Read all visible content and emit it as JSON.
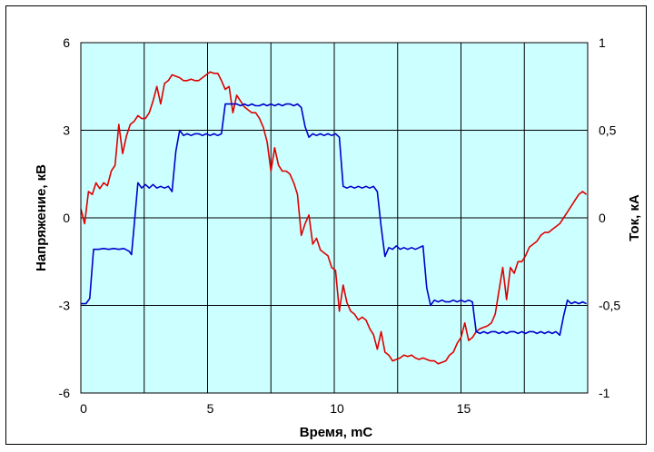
{
  "chart_data": {
    "type": "line",
    "title": "",
    "xlabel": "Время, mС",
    "ylabel": "Напряжение, кВ",
    "y2label": "Ток, кА",
    "xlim": [
      0,
      20
    ],
    "ylim": [
      -6,
      6
    ],
    "y2lim": [
      -1,
      1
    ],
    "x_ticks": [
      "0",
      "5",
      "10",
      "15"
    ],
    "x_tick_values": [
      0,
      5,
      10,
      15
    ],
    "y_ticks": [
      "6",
      "3",
      "0",
      "-3",
      "-6"
    ],
    "y_tick_values": [
      6,
      3,
      0,
      -3,
      -6
    ],
    "y2_ticks": [
      "1",
      "0,5",
      "0",
      "-0,5",
      "-1"
    ],
    "y2_tick_values": [
      1,
      0.5,
      0,
      -0.5,
      -1
    ],
    "vertical_grid_x": [
      2.5,
      5,
      7.5,
      10,
      12.5,
      15,
      17.5
    ],
    "horizontal_grid_y": [
      3,
      0,
      -3
    ],
    "grid": true,
    "legend": "none",
    "colors": {
      "plot_bg": "#ccffff",
      "voltage": "#e00000",
      "current": "#0000cc",
      "grid": "#000000"
    },
    "series": [
      {
        "key": "voltage",
        "axis": "left",
        "x": [
          0,
          0.15,
          0.3,
          0.45,
          0.6,
          0.75,
          0.9,
          1.05,
          1.2,
          1.35,
          1.5,
          1.65,
          1.8,
          1.95,
          2.1,
          2.25,
          2.4,
          2.55,
          2.7,
          2.85,
          3.0,
          3.15,
          3.3,
          3.45,
          3.6,
          3.75,
          3.9,
          4.05,
          4.2,
          4.35,
          4.5,
          4.65,
          4.8,
          4.95,
          5.1,
          5.25,
          5.4,
          5.55,
          5.7,
          5.85,
          6.0,
          6.15,
          6.3,
          6.45,
          6.6,
          6.75,
          6.9,
          7.05,
          7.2,
          7.35,
          7.5,
          7.65,
          7.8,
          7.95,
          8.1,
          8.25,
          8.4,
          8.55,
          8.7,
          8.85,
          9.0,
          9.15,
          9.3,
          9.45,
          9.6,
          9.75,
          9.9,
          10.05,
          10.2,
          10.35,
          10.5,
          10.65,
          10.8,
          10.95,
          11.1,
          11.25,
          11.4,
          11.55,
          11.7,
          11.85,
          12.0,
          12.15,
          12.3,
          12.45,
          12.6,
          12.75,
          12.9,
          13.05,
          13.2,
          13.35,
          13.5,
          13.65,
          13.8,
          13.95,
          14.1,
          14.25,
          14.4,
          14.55,
          14.7,
          14.85,
          15.0,
          15.15,
          15.3,
          15.45,
          15.6,
          15.75,
          15.9,
          16.05,
          16.2,
          16.35,
          16.5,
          16.65,
          16.8,
          16.95,
          17.1,
          17.25,
          17.4,
          17.55,
          17.7,
          17.85,
          18.0,
          18.15,
          18.3,
          18.45,
          18.6,
          18.75,
          18.9,
          19.05,
          19.2,
          19.35,
          19.5,
          19.65,
          19.8,
          19.95
        ],
        "values": [
          0.3,
          -0.2,
          0.9,
          0.8,
          1.2,
          1.0,
          1.2,
          1.1,
          1.6,
          1.8,
          3.2,
          2.2,
          2.8,
          3.2,
          3.3,
          3.5,
          3.4,
          3.4,
          3.6,
          4.0,
          4.5,
          3.9,
          4.6,
          4.7,
          4.9,
          4.85,
          4.8,
          4.7,
          4.7,
          4.75,
          4.7,
          4.7,
          4.8,
          4.9,
          5.0,
          4.95,
          4.95,
          4.7,
          4.4,
          4.5,
          3.6,
          4.2,
          4.0,
          3.8,
          3.7,
          3.6,
          3.6,
          3.4,
          3.1,
          2.6,
          1.6,
          2.4,
          1.8,
          1.6,
          1.6,
          1.5,
          1.2,
          0.8,
          -0.6,
          -0.2,
          0.1,
          -0.9,
          -0.7,
          -1.1,
          -1.2,
          -1.3,
          -1.7,
          -1.8,
          -3.2,
          -2.3,
          -2.9,
          -3.2,
          -3.3,
          -3.5,
          -3.4,
          -3.5,
          -3.8,
          -4.0,
          -4.5,
          -3.9,
          -4.6,
          -4.7,
          -4.9,
          -4.85,
          -4.8,
          -4.7,
          -4.75,
          -4.7,
          -4.8,
          -4.85,
          -4.8,
          -4.85,
          -4.9,
          -4.9,
          -5.0,
          -4.95,
          -4.9,
          -4.7,
          -4.6,
          -4.3,
          -4.1,
          -3.6,
          -4.2,
          -4.1,
          -3.9,
          -3.8,
          -3.75,
          -3.7,
          -3.6,
          -3.3,
          -2.5,
          -1.7,
          -2.8,
          -1.7,
          -1.9,
          -1.5,
          -1.5,
          -1.3,
          -1.0,
          -0.9,
          -0.8,
          -0.6,
          -0.5,
          -0.5,
          -0.4,
          -0.3,
          -0.2,
          0.0,
          0.2,
          0.4,
          0.6,
          0.8,
          0.9,
          0.8
        ],
        "note_values_unit": "кВ"
      },
      {
        "key": "current",
        "axis": "right",
        "x": [
          0,
          0.2,
          0.35,
          0.5,
          0.7,
          0.9,
          1.1,
          1.3,
          1.5,
          1.7,
          1.9,
          2.0,
          2.1,
          2.25,
          2.4,
          2.55,
          2.7,
          2.85,
          3.0,
          3.15,
          3.3,
          3.45,
          3.6,
          3.75,
          3.9,
          4.05,
          4.2,
          4.35,
          4.5,
          4.65,
          4.8,
          4.95,
          5.1,
          5.25,
          5.4,
          5.55,
          5.7,
          5.85,
          6.0,
          6.15,
          6.3,
          6.45,
          6.6,
          6.75,
          6.9,
          7.05,
          7.2,
          7.35,
          7.5,
          7.65,
          7.8,
          7.95,
          8.1,
          8.25,
          8.4,
          8.55,
          8.7,
          8.85,
          9.0,
          9.15,
          9.3,
          9.45,
          9.6,
          9.75,
          9.9,
          10.05,
          10.2,
          10.35,
          10.5,
          10.65,
          10.8,
          10.95,
          11.1,
          11.25,
          11.4,
          11.55,
          11.7,
          11.85,
          12.0,
          12.15,
          12.3,
          12.45,
          12.6,
          12.75,
          12.9,
          13.05,
          13.2,
          13.35,
          13.5,
          13.65,
          13.8,
          13.95,
          14.1,
          14.25,
          14.4,
          14.55,
          14.7,
          14.85,
          15.0,
          15.15,
          15.3,
          15.45,
          15.6,
          15.75,
          15.9,
          16.05,
          16.2,
          16.35,
          16.5,
          16.65,
          16.8,
          16.95,
          17.1,
          17.25,
          17.4,
          17.55,
          17.7,
          17.85,
          18.0,
          18.15,
          18.3,
          18.45,
          18.6,
          18.75,
          18.9,
          19.05,
          19.2,
          19.35,
          19.5,
          19.65,
          19.8,
          19.95
        ],
        "values": [
          -0.49,
          -0.49,
          -0.46,
          -0.18,
          -0.18,
          -0.175,
          -0.18,
          -0.175,
          -0.18,
          -0.175,
          -0.19,
          -0.21,
          -0.05,
          0.2,
          0.17,
          0.19,
          0.17,
          0.19,
          0.17,
          0.18,
          0.17,
          0.18,
          0.15,
          0.38,
          0.5,
          0.47,
          0.48,
          0.47,
          0.48,
          0.48,
          0.47,
          0.48,
          0.47,
          0.48,
          0.47,
          0.48,
          0.65,
          0.65,
          0.65,
          0.65,
          0.64,
          0.65,
          0.64,
          0.65,
          0.64,
          0.64,
          0.65,
          0.64,
          0.65,
          0.64,
          0.65,
          0.64,
          0.65,
          0.65,
          0.64,
          0.65,
          0.63,
          0.52,
          0.46,
          0.48,
          0.47,
          0.48,
          0.47,
          0.48,
          0.47,
          0.48,
          0.46,
          0.18,
          0.17,
          0.18,
          0.17,
          0.18,
          0.17,
          0.18,
          0.17,
          0.18,
          0.15,
          -0.05,
          -0.22,
          -0.17,
          -0.18,
          -0.16,
          -0.18,
          -0.17,
          -0.18,
          -0.17,
          -0.18,
          -0.17,
          -0.16,
          -0.4,
          -0.5,
          -0.47,
          -0.48,
          -0.47,
          -0.48,
          -0.48,
          -0.47,
          -0.48,
          -0.47,
          -0.48,
          -0.47,
          -0.48,
          -0.65,
          -0.66,
          -0.65,
          -0.66,
          -0.65,
          -0.65,
          -0.66,
          -0.65,
          -0.66,
          -0.65,
          -0.65,
          -0.66,
          -0.65,
          -0.66,
          -0.65,
          -0.65,
          -0.66,
          -0.65,
          -0.66,
          -0.65,
          -0.66,
          -0.65,
          -0.67,
          -0.56,
          -0.47,
          -0.49,
          -0.48,
          -0.49,
          -0.48,
          -0.49
        ],
        "note_values_unit": "кА"
      }
    ]
  }
}
